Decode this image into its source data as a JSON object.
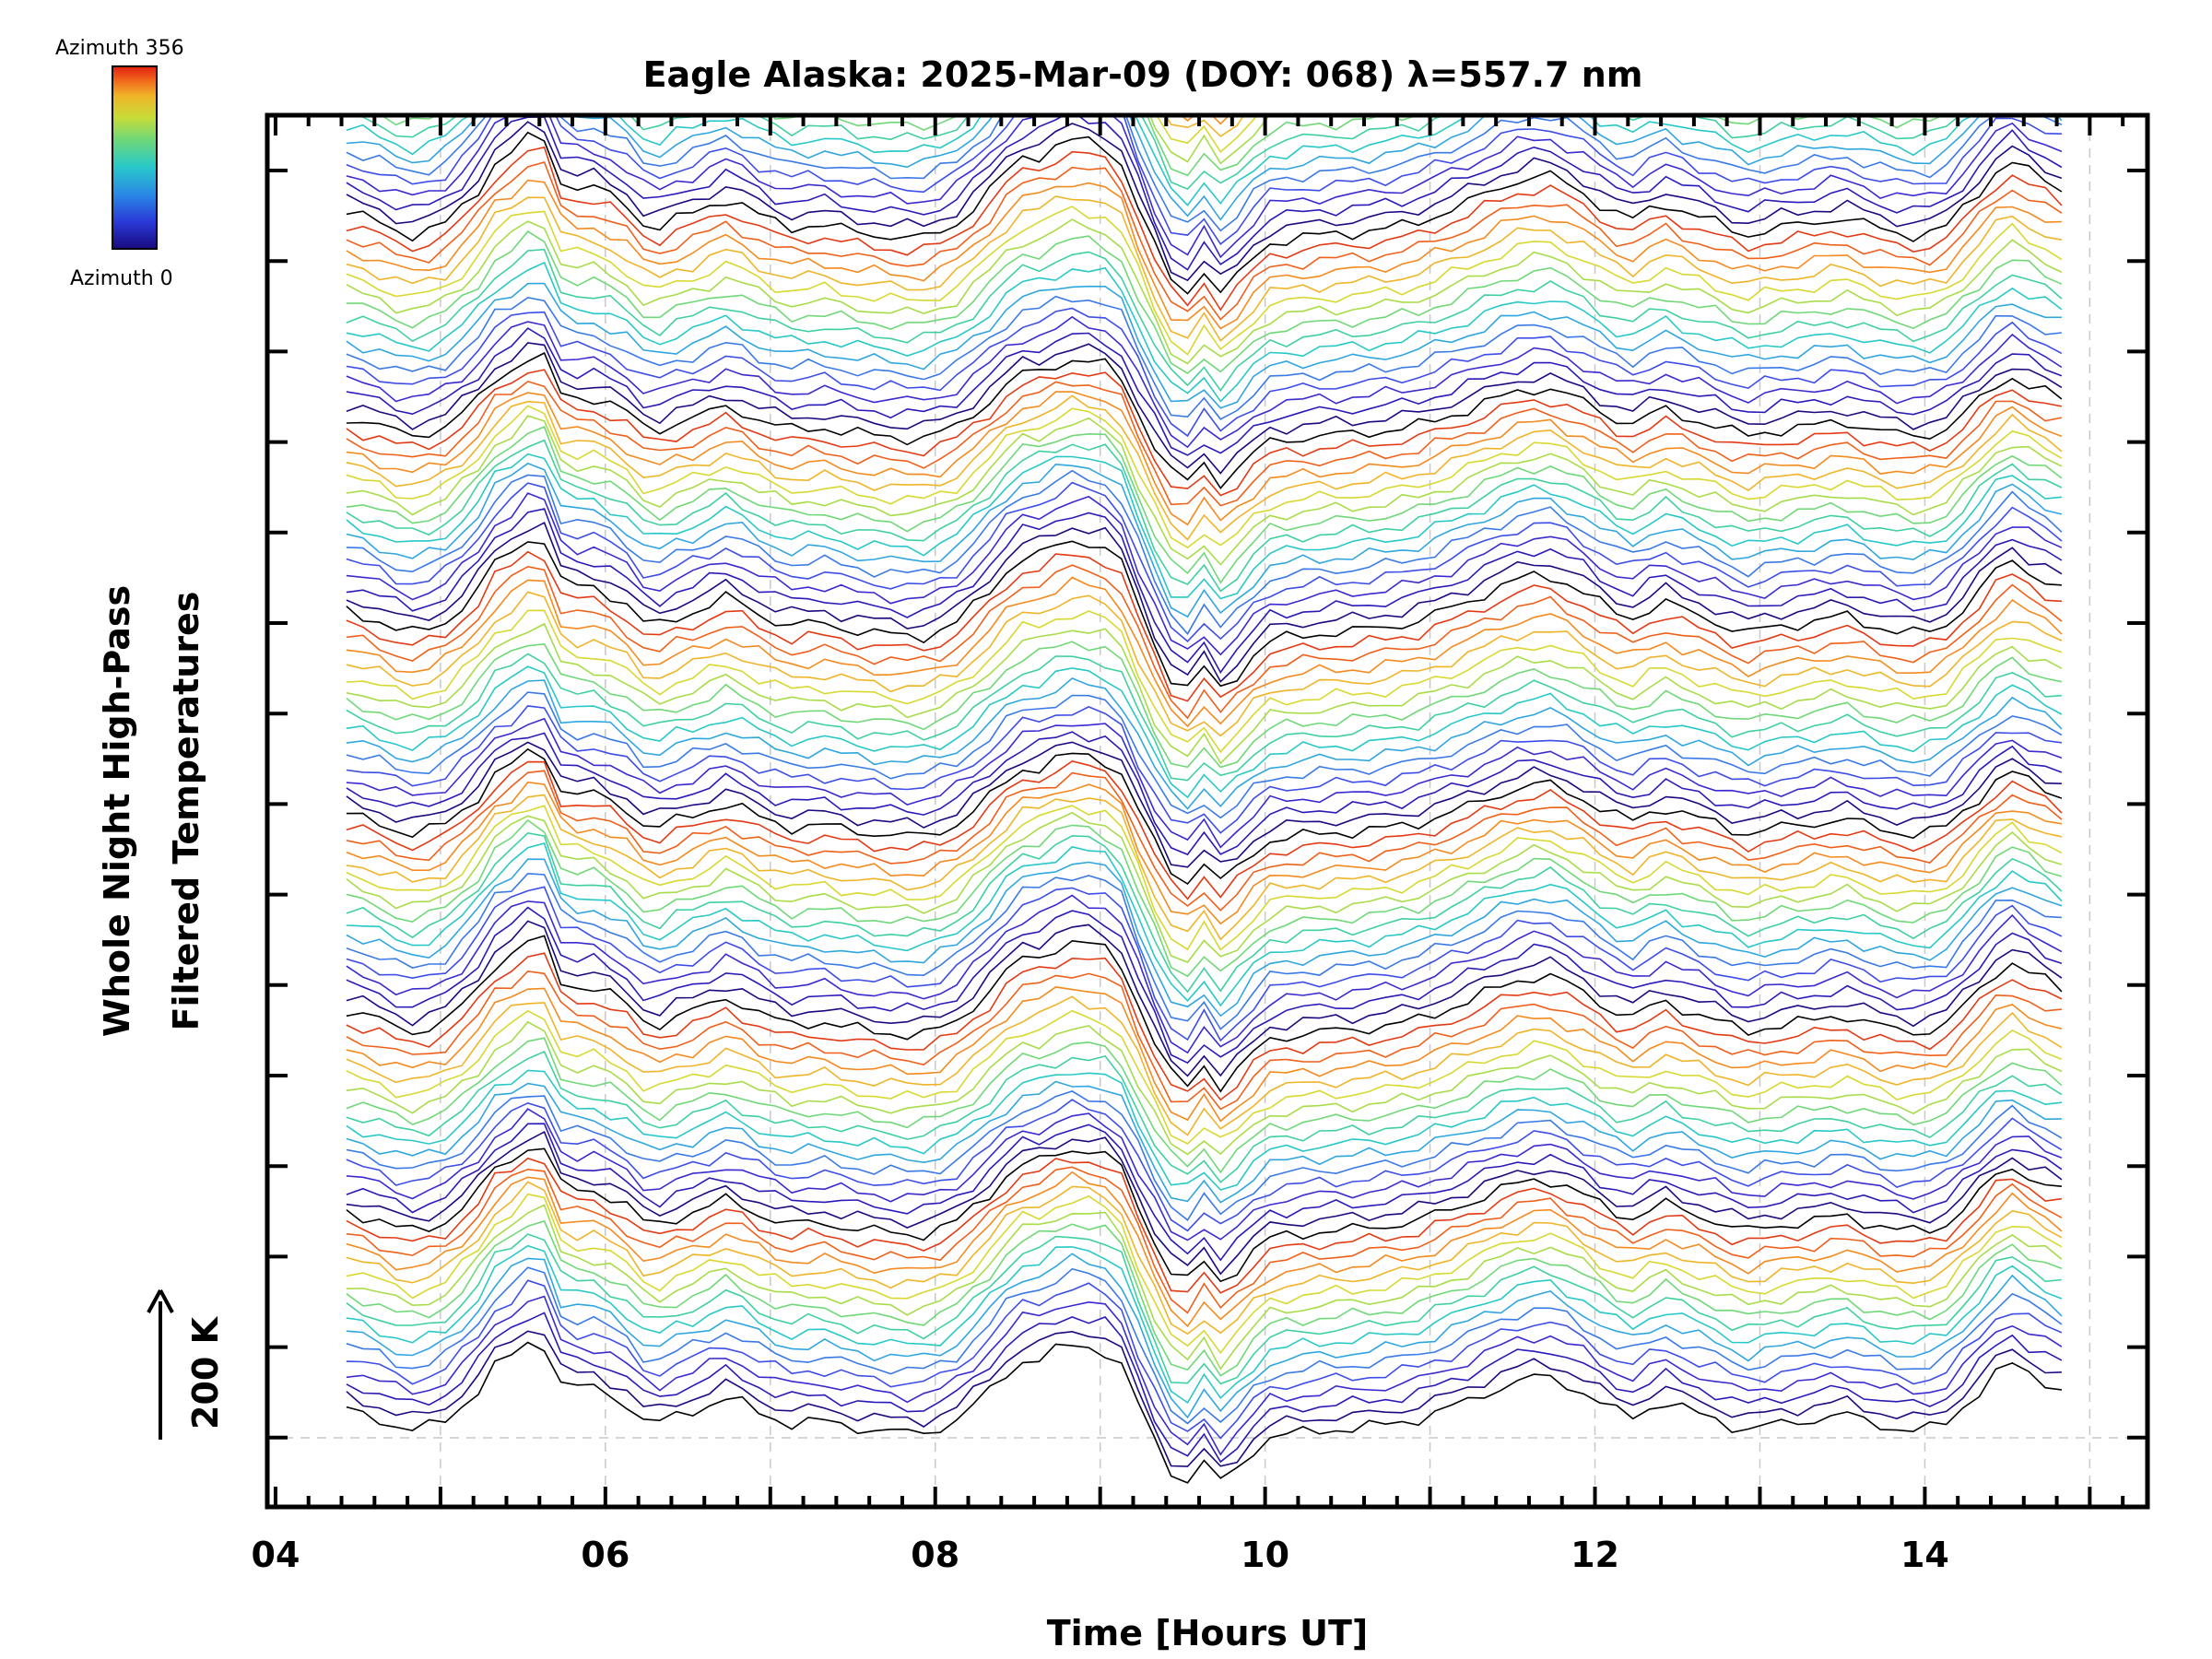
{
  "chart_data": {
    "type": "line",
    "title": "Eagle Alaska: 2025-Mar-09 (DOY: 068) λ=557.7 nm",
    "xlabel": "Time [Hours UT]",
    "ylabel_line1": "Whole Night High-Pass",
    "ylabel_line2": "Filtered Temperatures",
    "scale_label": "200 K",
    "xlim": [
      3.95,
      15.35
    ],
    "x_ticks": [
      "04",
      "06",
      "08",
      "10",
      "12",
      "14"
    ],
    "x_tick_values": [
      4,
      6,
      8,
      10,
      12,
      14
    ],
    "grid": true,
    "colorbar": {
      "top_label": "Azimuth 356",
      "bottom_label": "Azimuth 0",
      "min": 0,
      "max": 356,
      "colormap": "rainbow"
    },
    "n_traces": 128,
    "trace_start_hour": 4.43,
    "trace_end_hour": 14.83,
    "trace_offset_kelvin": 18,
    "reference_profile": {
      "x": [
        4.43,
        4.6,
        4.8,
        5.0,
        5.2,
        5.35,
        5.45,
        5.6,
        5.75,
        5.9,
        6.1,
        6.28,
        6.4,
        6.55,
        6.75,
        6.9,
        7.1,
        7.3,
        7.5,
        7.7,
        7.9,
        8.1,
        8.3,
        8.5,
        8.65,
        8.8,
        8.95,
        9.1,
        9.3,
        9.5,
        9.6,
        9.7,
        9.85,
        10.0,
        10.3,
        10.6,
        10.9,
        11.2,
        11.5,
        11.7,
        11.9,
        12.1,
        12.25,
        12.4,
        12.55,
        12.7,
        12.9,
        13.1,
        13.3,
        13.5,
        13.7,
        13.9,
        14.1,
        14.3,
        14.5,
        14.65,
        14.83
      ],
      "y": [
        40,
        30,
        10,
        20,
        60,
        110,
        120,
        150,
        70,
        75,
        55,
        15,
        30,
        40,
        60,
        40,
        20,
        25,
        15,
        10,
        5,
        20,
        60,
        110,
        115,
        135,
        130,
        120,
        10,
        -80,
        -20,
        -70,
        -40,
        0,
        10,
        15,
        25,
        50,
        80,
        90,
        70,
        40,
        30,
        55,
        40,
        30,
        10,
        20,
        25,
        35,
        20,
        10,
        15,
        60,
        110,
        90,
        70
      ]
    },
    "row_colors": [
      "#000000",
      "#1a0a80",
      "#2a1ab8",
      "#3a2ad0",
      "#3d4de8",
      "#3a7ae8",
      "#30a6e0",
      "#28c8c8",
      "#40d0a0",
      "#70d878",
      "#a8dc48",
      "#d8d830",
      "#f0b428",
      "#f58a1e",
      "#f0601a",
      "#e33a14"
    ],
    "accent_color": "#000000"
  }
}
